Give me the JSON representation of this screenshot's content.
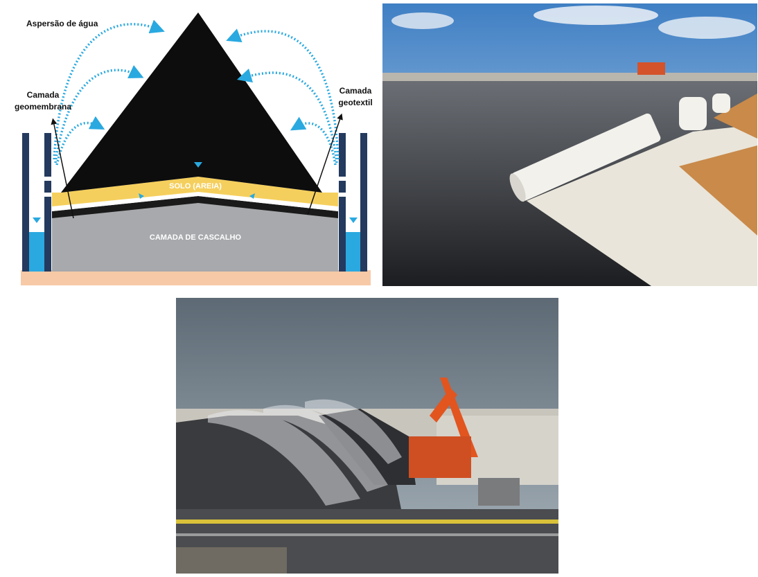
{
  "diagram": {
    "water_spray_label": "Aspersão de água",
    "geomembrane_label": [
      "Camada",
      "geomembrana"
    ],
    "geotextile_label": [
      "Camada",
      "geotextil"
    ],
    "soil_label": "SOLO (AREIA)",
    "gravel_label": "CAMADA DE CASCALHO"
  }
}
